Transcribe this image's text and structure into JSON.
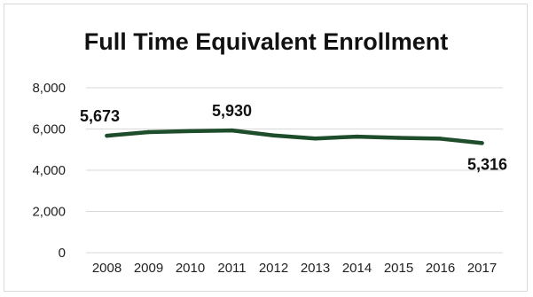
{
  "chart_data": {
    "type": "line",
    "title": "Full Time Equivalent Enrollment",
    "xlabel": "",
    "ylabel": "",
    "categories": [
      "2008",
      "2009",
      "2010",
      "2011",
      "2012",
      "2013",
      "2014",
      "2015",
      "2016",
      "2017"
    ],
    "series": [
      {
        "values": [
          5673,
          5850,
          5900,
          5930,
          5690,
          5540,
          5630,
          5570,
          5530,
          5316
        ]
      }
    ],
    "ylim": [
      0,
      8000
    ],
    "yticks": [
      "0",
      "2,000",
      "4,000",
      "6,000",
      "8,000"
    ],
    "data_labels": [
      {
        "index": 0,
        "text": "5,673"
      },
      {
        "index": 3,
        "text": "5,930"
      },
      {
        "index": 9,
        "text": "5,316"
      }
    ],
    "grid": true,
    "legend": "none",
    "colors": {
      "line": "#1e4d2b",
      "grid": "#d9d9d9"
    }
  }
}
